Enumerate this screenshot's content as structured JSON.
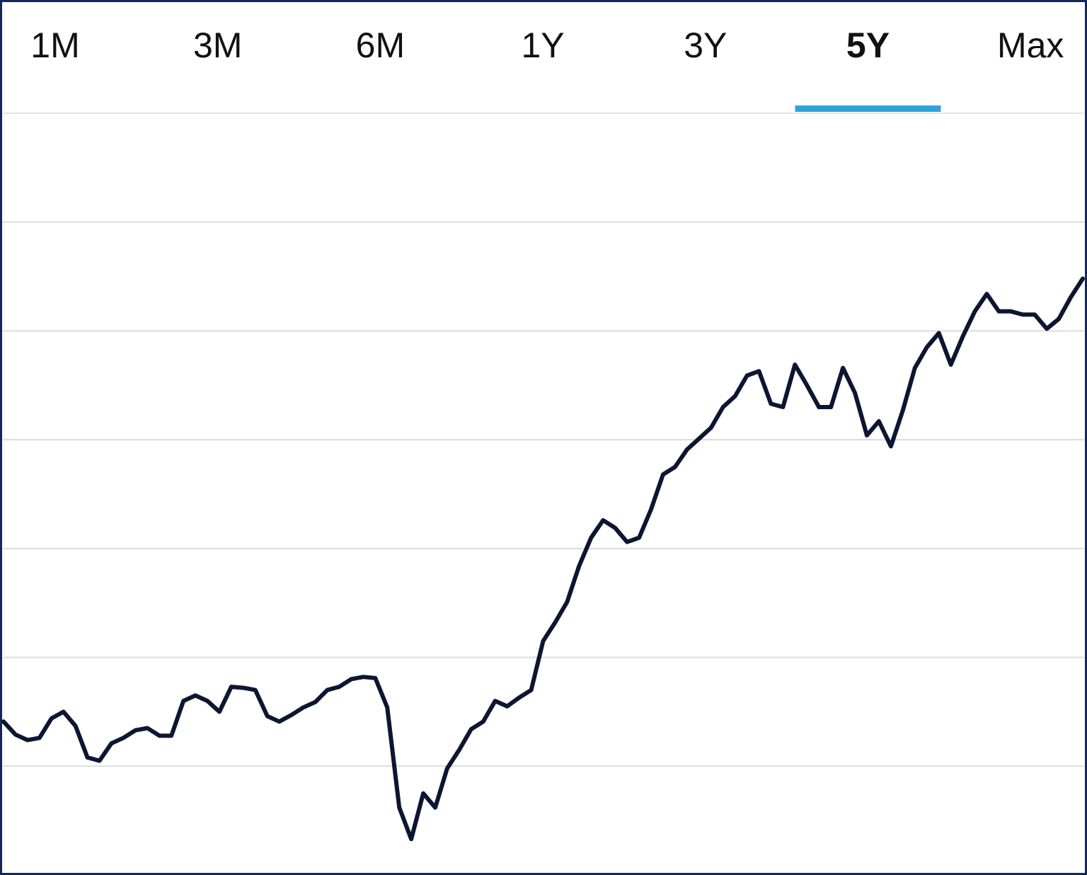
{
  "tabs": [
    "1M",
    "3M",
    "6M",
    "1Y",
    "3Y",
    "5Y",
    "Max"
  ],
  "selected_tab": 5,
  "chart_data": {
    "type": "line",
    "color": "#0c1631",
    "grid": true,
    "ylim": [
      0,
      7
    ],
    "yticks": [
      1,
      2,
      3,
      4,
      5,
      6
    ],
    "values": [
      1.41,
      1.29,
      1.24,
      1.26,
      1.44,
      1.5,
      1.37,
      1.08,
      1.05,
      1.21,
      1.26,
      1.33,
      1.35,
      1.28,
      1.28,
      1.6,
      1.65,
      1.6,
      1.5,
      1.73,
      1.72,
      1.7,
      1.46,
      1.41,
      1.47,
      1.54,
      1.59,
      1.7,
      1.73,
      1.8,
      1.82,
      1.81,
      1.54,
      0.62,
      0.33,
      0.75,
      0.62,
      0.98,
      1.15,
      1.34,
      1.41,
      1.6,
      1.55,
      1.63,
      1.7,
      2.15,
      2.32,
      2.51,
      2.84,
      3.1,
      3.26,
      3.19,
      3.06,
      3.1,
      3.36,
      3.68,
      3.75,
      3.91,
      4.01,
      4.11,
      4.3,
      4.4,
      4.59,
      4.63,
      4.33,
      4.3,
      4.69,
      4.5,
      4.3,
      4.3,
      4.66,
      4.43,
      4.04,
      4.17,
      3.94,
      4.27,
      4.66,
      4.85,
      4.98,
      4.69,
      4.95,
      5.18,
      5.34,
      5.18,
      5.18,
      5.15,
      5.15,
      5.02,
      5.11,
      5.31,
      5.48
    ]
  }
}
